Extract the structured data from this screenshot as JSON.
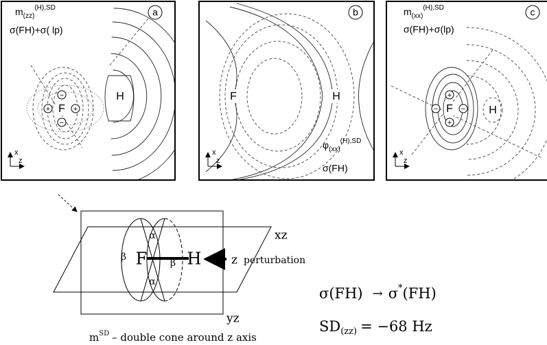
{
  "panels": [
    {
      "label": "a",
      "title": {
        "base": "m",
        "sub": "(zz)",
        "sup": "(H),SD"
      },
      "caption": "σ(FH)+σ( lp)",
      "atoms": [
        "F",
        "H"
      ],
      "signs": [
        "+",
        "+",
        "−",
        "−"
      ],
      "axes": [
        "x",
        "z"
      ]
    },
    {
      "label": "b",
      "title": {
        "base": "φ",
        "sub": "(xx)",
        "sup": "(H),SD"
      },
      "caption": "σ(FH)",
      "atoms": [
        "F",
        "H"
      ],
      "axes": [
        "x",
        "z"
      ]
    },
    {
      "label": "c",
      "title": {
        "base": "m",
        "sub": "(xx)",
        "sup": "(H),SD"
      },
      "caption": "σ(FH)+σ(lp)",
      "atoms": [
        "F",
        "H"
      ],
      "signs": [
        "−",
        "−",
        "+",
        "+"
      ],
      "axes": [
        "x",
        "z"
      ]
    }
  ],
  "cone_diagram": {
    "planes": [
      "xz",
      "yz"
    ],
    "angles": [
      "α",
      "α",
      "β",
      "β"
    ],
    "atoms": [
      "F",
      "H"
    ],
    "axis": "z",
    "arrow_label": "perturbation",
    "caption": {
      "base": "m",
      "sup": "SD",
      "text": "– double cone around z axis"
    }
  },
  "equations": [
    {
      "from": "σ(FH)",
      "arrow": "→",
      "to_base": "σ",
      "to_sup": "*",
      "to_rest": "(FH)"
    },
    {
      "base": "SD",
      "sub": "(zz)",
      "rest": "= −68 Hz"
    }
  ]
}
